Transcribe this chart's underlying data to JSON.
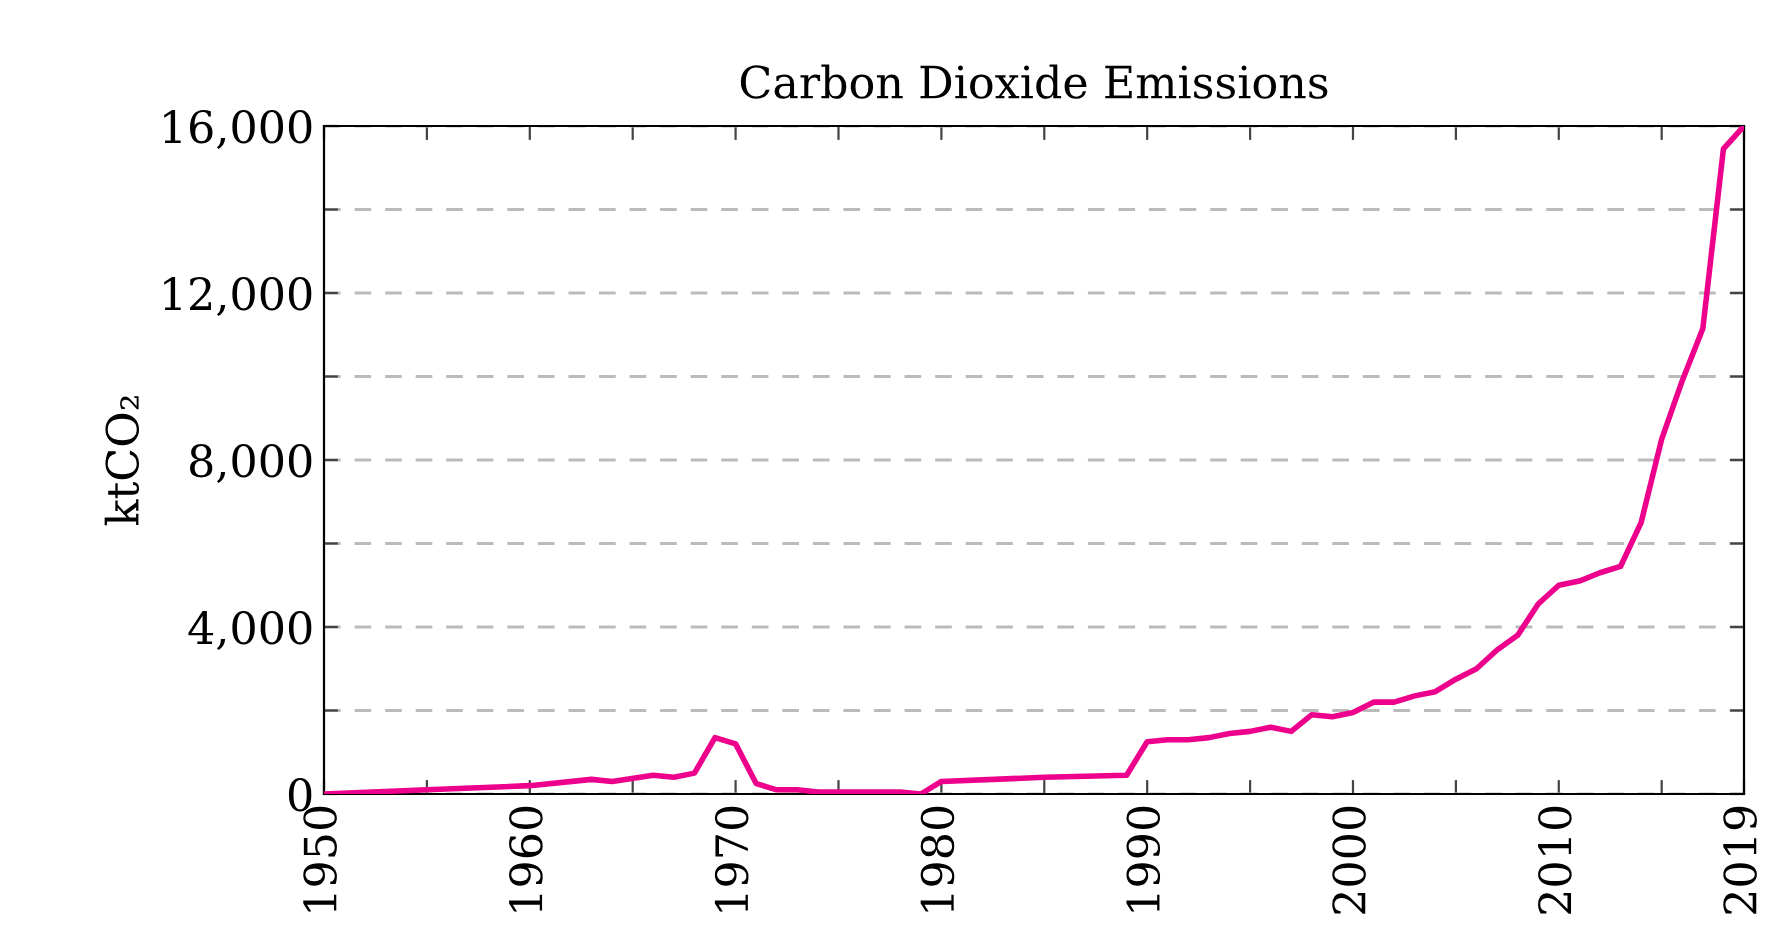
{
  "chart_data": {
    "type": "line",
    "title": "Carbon Dioxide Emissions",
    "ylabel": "ktCO₂",
    "x": [
      1950,
      1955,
      1960,
      1963,
      1964,
      1966,
      1967,
      1968,
      1969,
      1970,
      1971,
      1972,
      1973,
      1974,
      1975,
      1976,
      1977,
      1978,
      1979,
      1980,
      1985,
      1989,
      1990,
      1991,
      1992,
      1993,
      1994,
      1995,
      1996,
      1997,
      1998,
      1999,
      2000,
      2001,
      2002,
      2003,
      2004,
      2005,
      2006,
      2007,
      2008,
      2009,
      2010,
      2011,
      2012,
      2013,
      2014,
      2015,
      2016,
      2017,
      2018,
      2019
    ],
    "series": [
      {
        "color": "#ec008c",
        "values": [
          0,
          100,
          200,
          350,
          300,
          450,
          400,
          500,
          1350,
          1200,
          250,
          100,
          100,
          50,
          50,
          50,
          50,
          50,
          0,
          300,
          400,
          450,
          1250,
          1300,
          1300,
          1350,
          1450,
          1500,
          1600,
          1500,
          1900,
          1850,
          1950,
          2200,
          2200,
          2350,
          2450,
          2750,
          3000,
          3450,
          3800,
          4550,
          5000,
          5100,
          5300,
          5450,
          6500,
          8500,
          9900,
          11150,
          15450,
          16000
        ]
      }
    ],
    "xlim": [
      1950,
      2019
    ],
    "ylim": [
      0,
      16000
    ],
    "xticks": [
      1950,
      {
        "value": 1955,
        "label": null
      },
      1960,
      {
        "value": 1965,
        "label": null
      },
      1970,
      {
        "value": 1975,
        "label": null
      },
      1980,
      {
        "value": 1985,
        "label": null
      },
      1990,
      {
        "value": 1995,
        "label": null
      },
      2000,
      {
        "value": 2005,
        "label": null
      },
      2010,
      {
        "value": 2015,
        "label": null
      },
      2019
    ],
    "yticks": [
      {
        "value": 0,
        "label": "0"
      },
      {
        "value": 2000,
        "label": null
      },
      {
        "value": 4000,
        "label": "4,000"
      },
      {
        "value": 6000,
        "label": null
      },
      {
        "value": 8000,
        "label": "8,000"
      },
      {
        "value": 10000,
        "label": null
      },
      {
        "value": 12000,
        "label": "12,000"
      },
      {
        "value": 14000,
        "label": null
      },
      {
        "value": 16000,
        "label": "16,000"
      }
    ],
    "grid": "y",
    "marker": "none",
    "line_style": "solid"
  }
}
